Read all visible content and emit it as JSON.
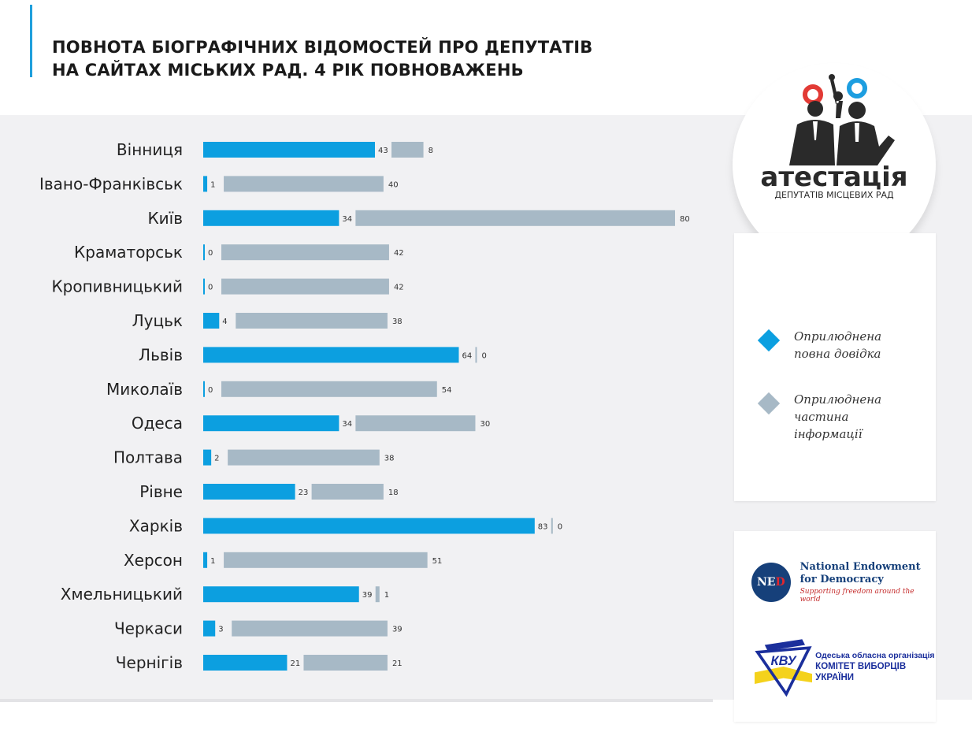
{
  "title": {
    "line1": "ПОВНОТА БІОГРАФІЧНИХ ВІДОМОСТЕЙ ПРО ДЕПУТАТІВ",
    "line2": "НА САЙТАХ МІСЬКИХ РАД. 4 РІК ПОВНОВАЖЕНЬ"
  },
  "colors": {
    "full": "#0c9fe0",
    "partial": "#a7b9c6",
    "accent": "#1f9fdc",
    "logo_red": "#e23a35",
    "logo_blue": "#1d9ee0"
  },
  "logo": {
    "text_main": "атестація",
    "text_sub": "ДЕПУТАТІВ МІСЦЕВИХ РАД"
  },
  "legend": {
    "full_label": "Оприлюднена повна довідка",
    "partial_label": "Оприлюднена частина інформації"
  },
  "sponsors": {
    "ned_abbr_1": "NE",
    "ned_abbr_2": "D",
    "ned_name": "National Endowment for Democracy",
    "ned_slogan": "Supporting freedom around the world",
    "cvu_line1": "Одеська обласна організація",
    "cvu_line2": "КОМІТЕТ ВИБОРЦІВ УКРАЇНИ"
  },
  "chart_data": {
    "type": "bar",
    "orientation": "horizontal",
    "stacked": true,
    "categories": [
      "Вінниця",
      "Івано-Франківськ",
      "Київ",
      "Краматорськ",
      "Кропивницький",
      "Луцьк",
      "Львів",
      "Миколаїв",
      "Одеса",
      "Полтава",
      "Рівне",
      "Харків",
      "Херсон",
      "Хмельницький",
      "Черкаси",
      "Чернігів"
    ],
    "series": [
      {
        "name": "Оприлюднена повна довідка",
        "values": [
          43,
          1,
          34,
          0,
          0,
          4,
          64,
          0,
          34,
          2,
          23,
          83,
          1,
          39,
          3,
          21
        ]
      },
      {
        "name": "Оприлюднена частина інформації",
        "values": [
          8,
          40,
          80,
          42,
          42,
          38,
          0,
          54,
          30,
          38,
          18,
          0,
          51,
          1,
          39,
          21
        ]
      }
    ],
    "legend_position": "right",
    "grid": false
  }
}
